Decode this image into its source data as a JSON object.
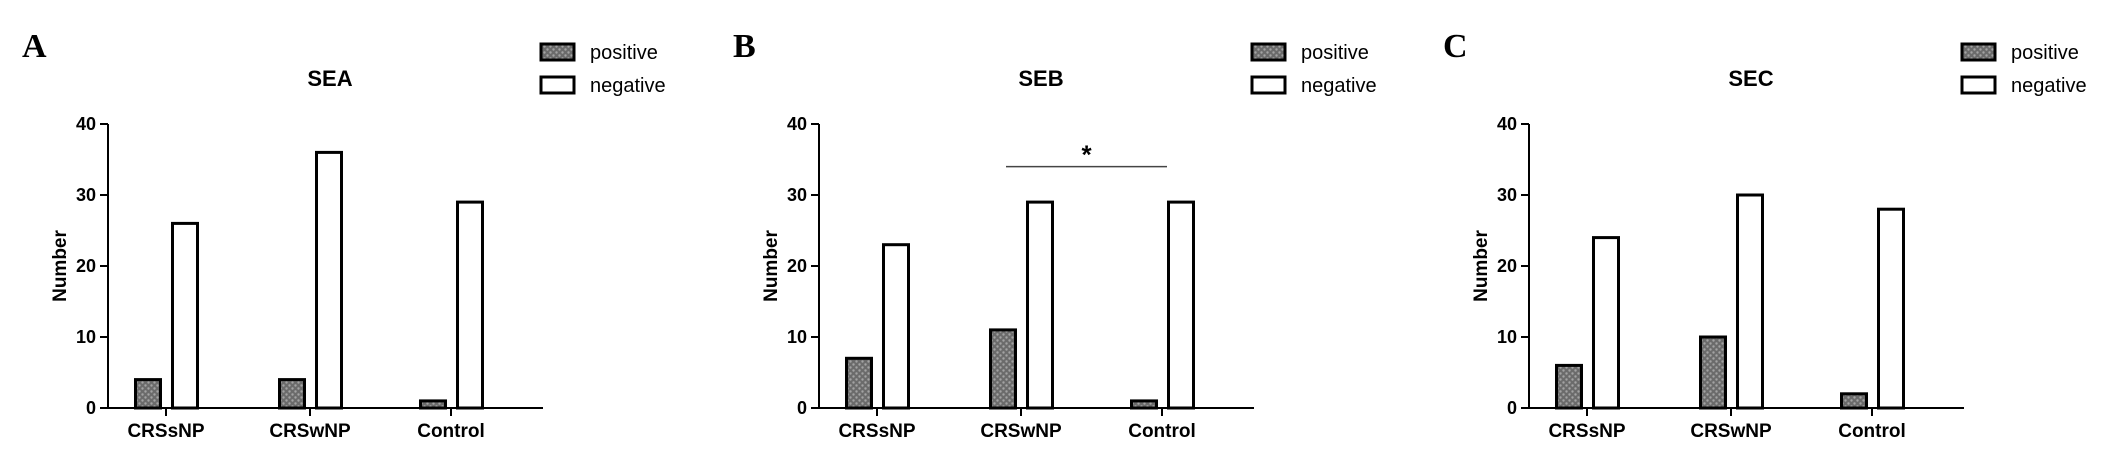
{
  "chart_data": [
    {
      "type": "bar",
      "panel": "A",
      "title": "SEA",
      "xlabel": "",
      "ylabel": "Number",
      "ylim": [
        0,
        40
      ],
      "yticks": [
        "0",
        "10",
        "20",
        "30",
        "40"
      ],
      "categories": [
        "CRSsNP",
        "CRSwNP",
        "Control"
      ],
      "series": [
        {
          "name": "positive",
          "values": [
            4,
            4,
            1
          ]
        },
        {
          "name": "negative",
          "values": [
            26,
            36,
            29
          ]
        }
      ],
      "legend": "top-right",
      "significance": null
    },
    {
      "type": "bar",
      "panel": "B",
      "title": "SEB",
      "xlabel": "",
      "ylabel": "Number",
      "ylim": [
        0,
        40
      ],
      "yticks": [
        "0",
        "10",
        "20",
        "30",
        "40"
      ],
      "categories": [
        "CRSsNP",
        "CRSwNP",
        "Control"
      ],
      "series": [
        {
          "name": "positive",
          "values": [
            7,
            11,
            1
          ]
        },
        {
          "name": "negative",
          "values": [
            23,
            29,
            29
          ]
        }
      ],
      "legend": "top-right",
      "significance": {
        "from": "CRSwNP",
        "to": "Control",
        "label": "*",
        "level": 34
      }
    },
    {
      "type": "bar",
      "panel": "C",
      "title": "SEC",
      "xlabel": "",
      "ylabel": "Number",
      "ylim": [
        0,
        40
      ],
      "yticks": [
        "0",
        "10",
        "20",
        "30",
        "40"
      ],
      "categories": [
        "CRSsNP",
        "CRSwNP",
        "Control"
      ],
      "series": [
        {
          "name": "positive",
          "values": [
            6,
            10,
            2
          ]
        },
        {
          "name": "negative",
          "values": [
            24,
            30,
            28
          ]
        }
      ],
      "legend": "top-right",
      "significance": null
    }
  ],
  "colors": {
    "positive_fill": "#6b6b6b",
    "positive_texture": "#9a9a9a",
    "negative_fill": "#ffffff",
    "stroke": "#000000"
  }
}
